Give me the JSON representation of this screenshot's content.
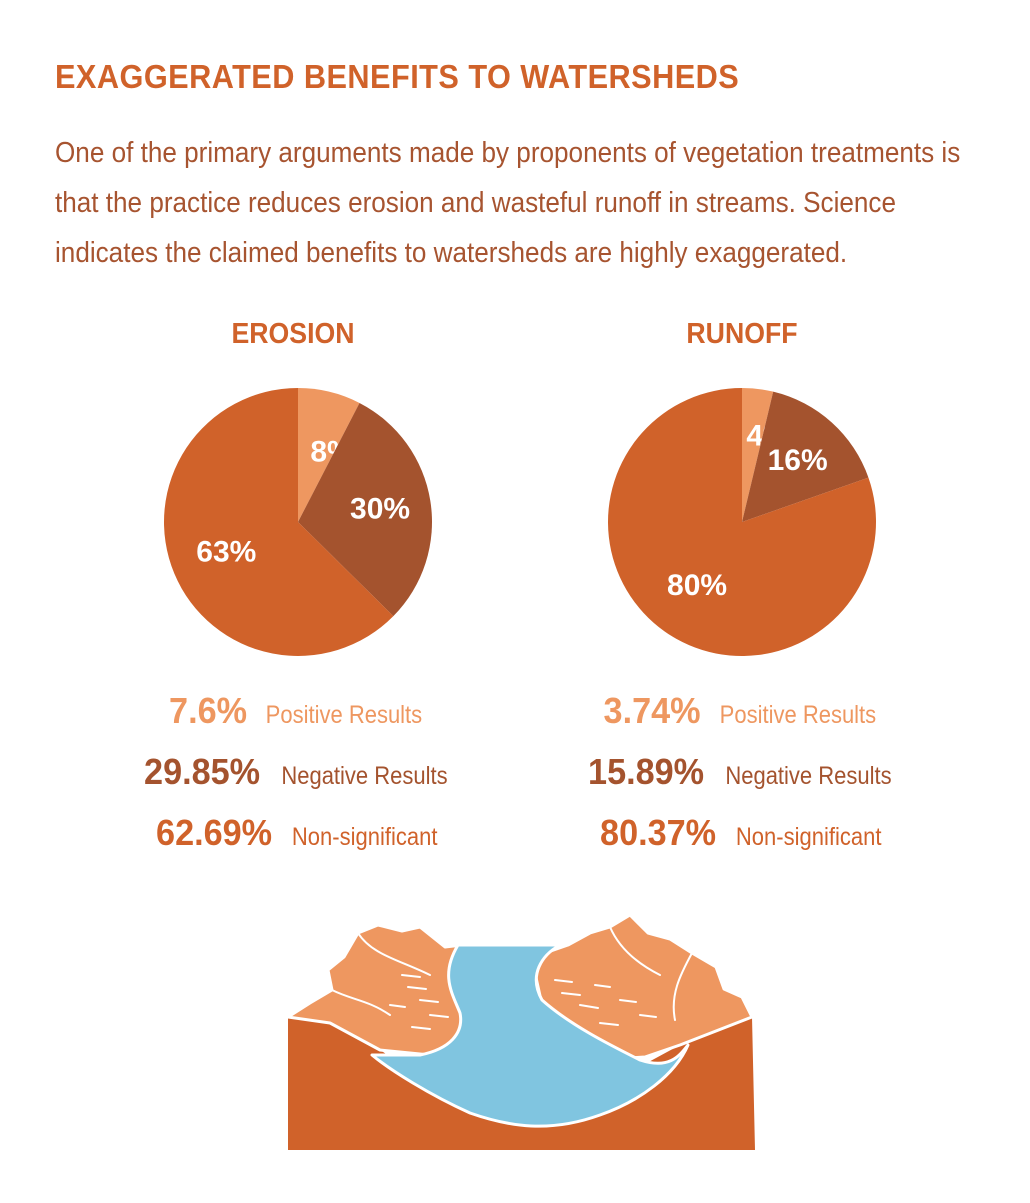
{
  "title": "EXAGGERATED BENEFITS TO WATERSHEDS",
  "intro": "One of the primary arguments made by proponents of vegetation treatments is that the practice reduces erosion and wasteful runoff in streams. Science indicates the claimed benefits to watersheds are highly exaggerated.",
  "colors": {
    "positive": "#ee9760",
    "negative": "#a4532e",
    "non_significant": "#d0622a",
    "water": "#80c5e0",
    "text": "#a75430"
  },
  "chart_data": [
    {
      "type": "pie",
      "title": "EROSION",
      "slices": [
        {
          "label": "8%",
          "value": 7.6,
          "color": "#ee9760"
        },
        {
          "label": "30%",
          "value": 29.85,
          "color": "#a4532e"
        },
        {
          "label": "63%",
          "value": 62.69,
          "color": "#d0622a"
        }
      ],
      "legend": [
        {
          "value": "7.6%",
          "label": "Positive Results"
        },
        {
          "value": "29.85%",
          "label": "Negative Results"
        },
        {
          "value": "62.69%",
          "label": "Non-significant"
        }
      ]
    },
    {
      "type": "pie",
      "title": "RUNOFF",
      "slices": [
        {
          "label": "4%",
          "value": 3.74,
          "color": "#ee9760"
        },
        {
          "label": "16%",
          "value": 15.89,
          "color": "#a4532e"
        },
        {
          "label": "80%",
          "value": 80.37,
          "color": "#d0622a"
        }
      ],
      "legend": [
        {
          "value": "3.74%",
          "label": "Positive Results"
        },
        {
          "value": "15.89%",
          "label": "Negative Results"
        },
        {
          "value": "80.37%",
          "label": "Non-significant"
        }
      ]
    }
  ]
}
